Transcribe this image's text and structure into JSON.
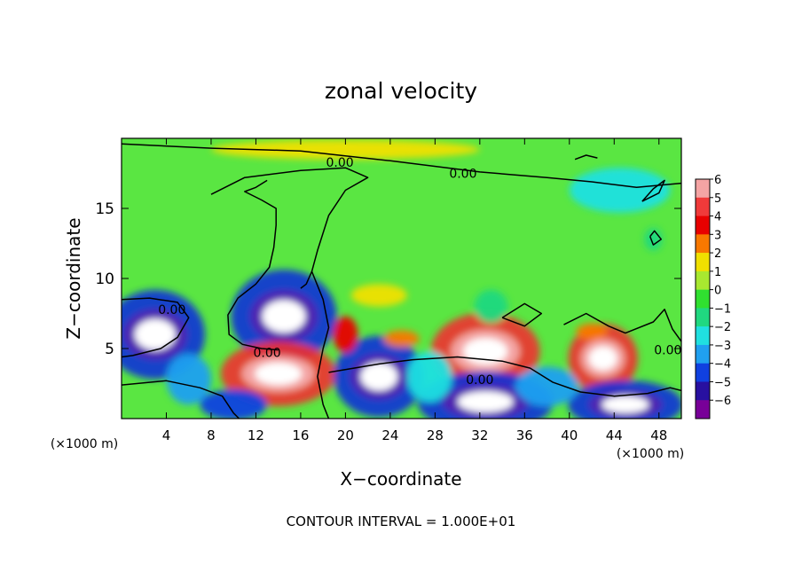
{
  "chart_data": {
    "type": "heatmap",
    "title": "zonal velocity",
    "xlabel": "X−coordinate",
    "ylabel": "Z−coordinate",
    "x_unit_left": "(×1000 m)",
    "x_unit_right": "(×1000 m)",
    "xlim": [
      0,
      50
    ],
    "ylim": [
      0,
      20
    ],
    "x_ticks": [
      4,
      8,
      12,
      16,
      20,
      24,
      28,
      32,
      36,
      40,
      44,
      48
    ],
    "x_tick_labels": [
      "4",
      "8",
      "12",
      "16",
      "20",
      "24",
      "28",
      "32",
      "36",
      "40",
      "44",
      "48"
    ],
    "y_ticks": [
      5,
      10,
      15
    ],
    "y_tick_labels": [
      "5",
      "10",
      "15"
    ],
    "colorbar": {
      "levels": [
        6,
        5,
        4,
        3,
        2,
        1,
        0,
        -1,
        -2,
        -3,
        -4,
        -5,
        -6
      ],
      "labels": [
        "6",
        "5",
        "4",
        "3",
        "2",
        "1",
        "0",
        "−1",
        "−2",
        "−3",
        "−4",
        "−5",
        "−6"
      ],
      "colors": [
        "#f4a4a4",
        "#f03a3a",
        "#e80000",
        "#f87800",
        "#f0e000",
        "#a8e830",
        "#30e030",
        "#20d880",
        "#20e0e0",
        "#20a0f0",
        "#1040e0",
        "#2810a0",
        "#780098"
      ]
    },
    "background_color": "#5ae642",
    "contour_labels": [
      {
        "text": "0.00",
        "x": 19.5,
        "y": 18.3
      },
      {
        "text": "0.00",
        "x": 30.5,
        "y": 17.5
      },
      {
        "text": "0.00",
        "x": 4.5,
        "y": 7.8
      },
      {
        "text": "0.00",
        "x": 13.0,
        "y": 4.7
      },
      {
        "text": "0.00",
        "x": 32.0,
        "y": 2.8
      },
      {
        "text": "0.00",
        "x": 48.8,
        "y": 4.9
      }
    ],
    "features": [
      {
        "value": -6,
        "x": 3.0,
        "y": 6.0,
        "rx": 3.3,
        "ry": 2.2
      },
      {
        "value": -5,
        "x": 14.5,
        "y": 7.3,
        "rx": 3.5,
        "ry": 2.3
      },
      {
        "value": 5,
        "x": 14.0,
        "y": 3.2,
        "rx": 3.8,
        "ry": 1.6
      },
      {
        "value": -5,
        "x": 23.0,
        "y": 3.0,
        "rx": 3.0,
        "ry": 2.0
      },
      {
        "value": 5,
        "x": 32.5,
        "y": 4.8,
        "rx": 3.6,
        "ry": 1.9
      },
      {
        "value": -6,
        "x": 32.5,
        "y": 1.2,
        "rx": 4.5,
        "ry": 1.5
      },
      {
        "value": 5,
        "x": 43.0,
        "y": 4.3,
        "rx": 2.3,
        "ry": 1.7
      },
      {
        "value": -5,
        "x": 45.0,
        "y": 1.0,
        "rx": 3.8,
        "ry": 1.2
      },
      {
        "value": 4,
        "x": 20.0,
        "y": 6.0,
        "rx": 1.1,
        "ry": 1.3
      },
      {
        "value": -4,
        "x": 10.0,
        "y": 1.0,
        "rx": 3.0,
        "ry": 1.1
      },
      {
        "value": -3,
        "x": 38.0,
        "y": 2.3,
        "rx": 2.8,
        "ry": 1.4
      },
      {
        "value": -3,
        "x": 6.0,
        "y": 2.8,
        "rx": 2.0,
        "ry": 1.8
      },
      {
        "value": -2,
        "x": 44.5,
        "y": 16.3,
        "rx": 4.5,
        "ry": 1.6
      },
      {
        "value": 2,
        "x": 23.0,
        "y": 8.8,
        "rx": 2.5,
        "ry": 0.8
      },
      {
        "value": 2,
        "x": 20.0,
        "y": 19.2,
        "rx": 12.0,
        "ry": 0.7
      },
      {
        "value": 3,
        "x": 25.0,
        "y": 5.7,
        "rx": 1.6,
        "ry": 0.6
      },
      {
        "value": 3,
        "x": 42.0,
        "y": 6.2,
        "rx": 1.4,
        "ry": 0.6
      },
      {
        "value": -2,
        "x": 27.5,
        "y": 3.0,
        "rx": 2.0,
        "ry": 1.8
      },
      {
        "value": -1,
        "x": 33.0,
        "y": 8.0,
        "rx": 1.5,
        "ry": 1.2
      },
      {
        "value": -1,
        "x": 47.5,
        "y": 12.8,
        "rx": 0.8,
        "ry": 0.8
      }
    ],
    "contours": [
      [
        [
          0,
          19.6
        ],
        [
          8,
          19.3
        ],
        [
          16,
          19.1
        ],
        [
          24,
          18.4
        ],
        [
          32,
          17.6
        ],
        [
          38,
          17.2
        ],
        [
          42,
          16.9
        ],
        [
          46,
          16.5
        ],
        [
          50,
          16.8
        ]
      ],
      [
        [
          8,
          16.0
        ],
        [
          11,
          17.2
        ],
        [
          16,
          17.7
        ],
        [
          20,
          17.9
        ],
        [
          22,
          17.2
        ],
        [
          20,
          16.3
        ],
        [
          18.5,
          14.5
        ],
        [
          17.5,
          12.0
        ],
        [
          17.0,
          10.5
        ],
        [
          16.5,
          9.6
        ],
        [
          16.0,
          9.3
        ]
      ],
      [
        [
          13.0,
          17.0
        ],
        [
          12.0,
          16.5
        ],
        [
          11.0,
          16.2
        ],
        [
          12.5,
          15.6
        ],
        [
          13.8,
          15.0
        ],
        [
          13.8,
          13.8
        ],
        [
          13.6,
          12.2
        ],
        [
          13.2,
          10.8
        ],
        [
          12.0,
          9.6
        ],
        [
          10.4,
          8.6
        ],
        [
          9.5,
          7.4
        ],
        [
          9.6,
          6.0
        ],
        [
          10.8,
          5.3
        ],
        [
          12.5,
          5.0
        ],
        [
          14.0,
          4.9
        ]
      ],
      [
        [
          17.0,
          10.5
        ],
        [
          18.0,
          8.5
        ],
        [
          18.5,
          6.5
        ],
        [
          18.0,
          5.0
        ],
        [
          17.5,
          3.0
        ],
        [
          18.0,
          1.0
        ],
        [
          18.5,
          0.0
        ]
      ],
      [
        [
          0,
          8.5
        ],
        [
          2.5,
          8.6
        ],
        [
          5.0,
          8.3
        ],
        [
          6.0,
          7.2
        ],
        [
          5.0,
          5.8
        ],
        [
          3.5,
          5.0
        ],
        [
          1.0,
          4.5
        ],
        [
          0,
          4.4
        ]
      ],
      [
        [
          0,
          2.4
        ],
        [
          4,
          2.7
        ],
        [
          7,
          2.2
        ],
        [
          9,
          1.6
        ],
        [
          10,
          0.4
        ],
        [
          10.5,
          0.0
        ]
      ],
      [
        [
          18.5,
          3.3
        ],
        [
          23,
          3.9
        ],
        [
          26,
          4.2
        ],
        [
          30,
          4.4
        ],
        [
          34,
          4.1
        ],
        [
          36.5,
          3.6
        ],
        [
          38.5,
          2.6
        ],
        [
          41,
          1.9
        ],
        [
          44,
          1.6
        ],
        [
          47,
          1.8
        ],
        [
          49,
          2.2
        ],
        [
          50,
          2.0
        ]
      ],
      [
        [
          34,
          7.2
        ],
        [
          36,
          8.2
        ],
        [
          37.5,
          7.5
        ],
        [
          36,
          6.6
        ],
        [
          34,
          7.2
        ]
      ],
      [
        [
          39.5,
          6.7
        ],
        [
          41.5,
          7.5
        ],
        [
          43.5,
          6.6
        ],
        [
          45,
          6.1
        ],
        [
          47.5,
          6.9
        ],
        [
          48.5,
          7.8
        ],
        [
          49.2,
          6.4
        ],
        [
          50,
          5.5
        ]
      ],
      [
        [
          46.5,
          15.5
        ],
        [
          47.5,
          16.4
        ],
        [
          48.5,
          17.0
        ],
        [
          48,
          16.1
        ],
        [
          46.5,
          15.5
        ]
      ],
      [
        [
          47.2,
          13.0
        ],
        [
          47.5,
          12.4
        ],
        [
          48.2,
          12.8
        ],
        [
          47.6,
          13.4
        ],
        [
          47.2,
          13.0
        ]
      ],
      [
        [
          40.5,
          18.5
        ],
        [
          41.5,
          18.8
        ],
        [
          42.5,
          18.6
        ]
      ]
    ],
    "footer": "CONTOUR INTERVAL = 1.000E+01"
  }
}
